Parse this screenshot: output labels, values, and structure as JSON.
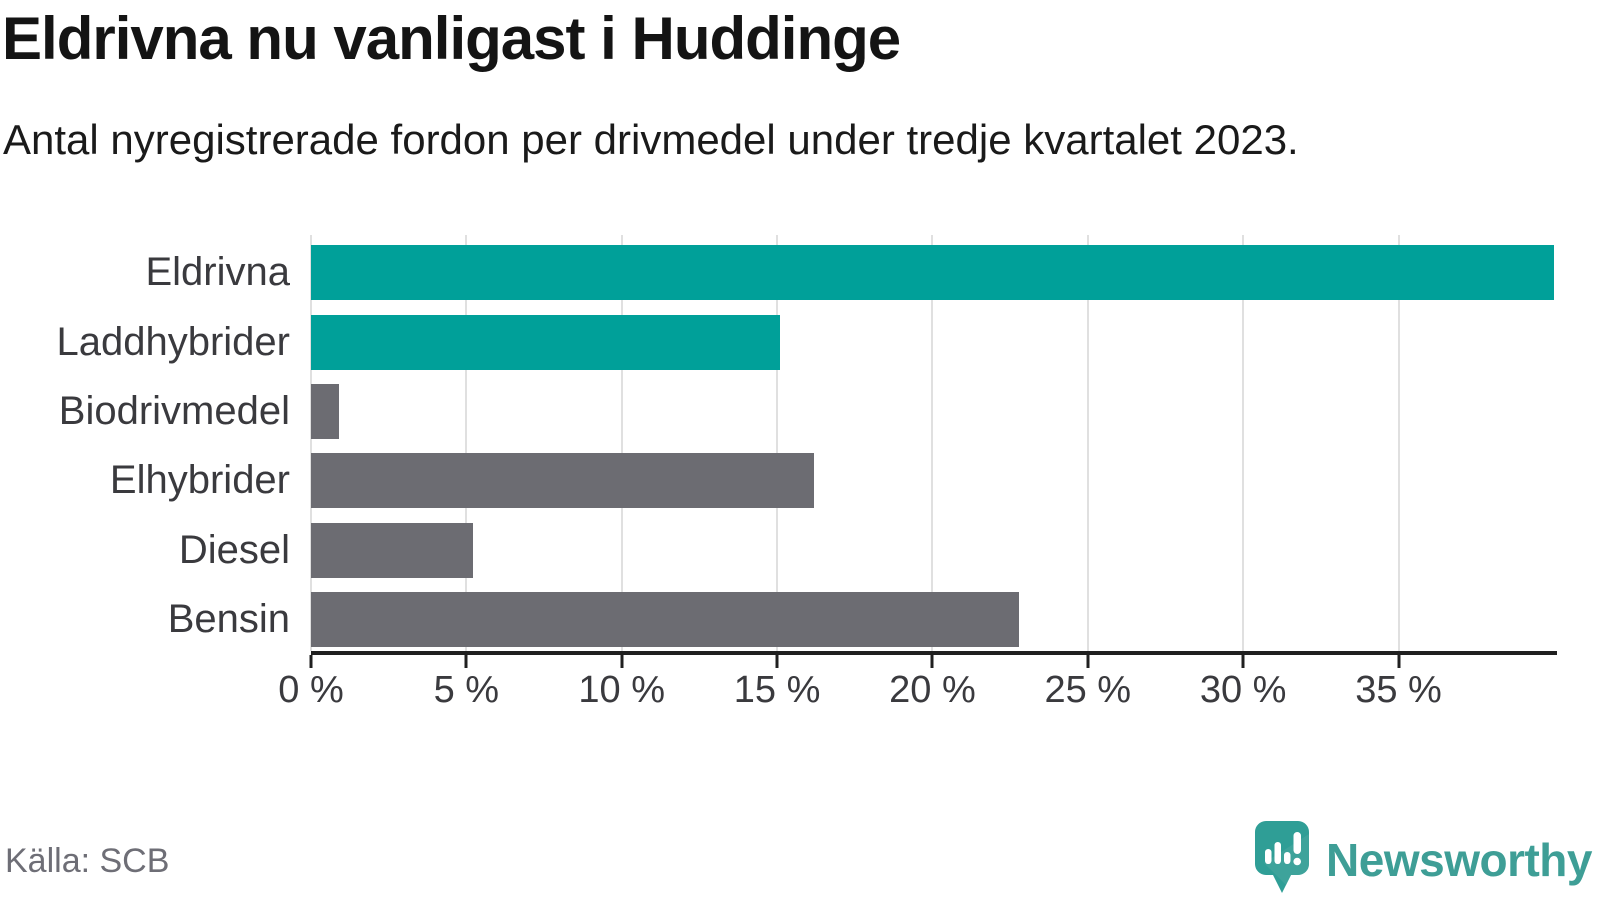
{
  "chart_data": {
    "type": "bar",
    "orientation": "horizontal",
    "title": "Eldrivna nu vanligast i Huddinge",
    "subtitle": "Antal nyregistrerade fordon per drivmedel under tredje kvartalet 2023.",
    "categories": [
      "Eldrivna",
      "Laddhybrider",
      "Biodrivmedel",
      "Elhybrider",
      "Diesel",
      "Bensin"
    ],
    "values": [
      40.0,
      15.1,
      0.9,
      16.2,
      5.2,
      22.8
    ],
    "unit": "%",
    "bar_colors": [
      "#00a099",
      "#00a099",
      "#6c6c72",
      "#6c6c72",
      "#6c6c72",
      "#6c6c72"
    ],
    "xlim": [
      0,
      40.1
    ],
    "x_ticks": [
      0,
      5,
      10,
      15,
      20,
      25,
      30,
      35
    ],
    "x_tick_labels": [
      "0 %",
      "5 %",
      "10 %",
      "15 %",
      "20 %",
      "25 %",
      "30 %",
      "35 %"
    ],
    "grid": "vertical",
    "legend": "none"
  },
  "footer": {
    "source": "Källa: SCB",
    "brand": "Newsworthy"
  },
  "colors": {
    "accent_teal": "#00a099",
    "bar_gray": "#6c6c72",
    "axis": "#202020",
    "gridline": "#e0e0e0",
    "text_dark": "#1a1a1a",
    "text_gray": "#3a3a3e",
    "muted_gray": "#6e6e76",
    "brand_teal": "#3e9e96"
  },
  "icons": {
    "brand_logo": "newsworthy-speech-bubble-chart-icon"
  }
}
